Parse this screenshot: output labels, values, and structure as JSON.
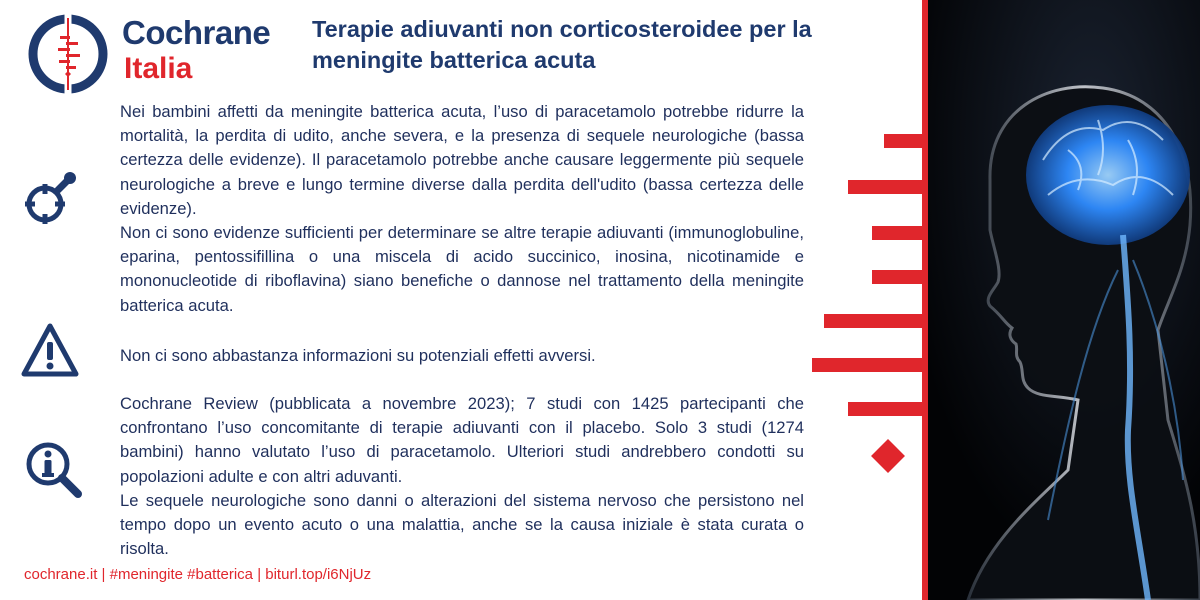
{
  "header": {
    "brand_line1": "Cochrane",
    "brand_line2": "Italia",
    "title": "Terapie adiuvanti non corticosteroidee per la meningite batterica acuta"
  },
  "sections": {
    "results": {
      "icon": "target-magnifier-icon",
      "paragraphs": [
        "Nei bambini affetti da meningite batterica acuta, l’uso di paracetamolo potrebbe ridurre la mortalità, la perdita di udito, anche severa, e la presenza di sequele neurologiche (bassa certezza delle evidenze). Il paracetamolo potrebbe anche causare leggermente più sequele neurologiche a breve e lungo termine diverse dalla perdita dell'udito (bassa certezza delle evidenze).",
        "Non ci sono evidenze sufficienti per determinare se altre terapie adiuvanti (immunoglobuline, eparina, pentossifillina o una miscela di acido succinico, inosina, nicotinamide e mononucleotide di riboflavina) siano benefiche o dannose nel trattamento della meningite batterica acuta."
      ]
    },
    "warning": {
      "icon": "warning-triangle-icon",
      "text": "Non ci sono abbastanza informazioni su potenziali effetti avversi."
    },
    "info": {
      "icon": "info-magnifier-icon",
      "paragraphs": [
        "Cochrane Review (pubblicata a novembre 2023); 7 studi con 1425 partecipanti che confrontano l’uso concomitante di terapie adiuvanti con il placebo. Solo 3 studi (1274 bambini) hanno valutato l’uso di paracetamolo. Ulteriori studi andrebbero condotti su popolazioni adulte e con altri aduvanti.",
        "Le sequele neurologiche sono danni o alterazioni del sistema nervoso che persistono nel tempo dopo un evento acuto o una malattia, anche se la causa iniziale è stata curata o risolta."
      ]
    }
  },
  "footer": {
    "text": "cochrane.it |  #meningite #batterica | biturl.top/i6NjUz"
  },
  "colors": {
    "navy": "#1f3a6e",
    "red": "#e0262c",
    "text": "#1f2f5c",
    "brain_glow": "#3aa0ff"
  }
}
